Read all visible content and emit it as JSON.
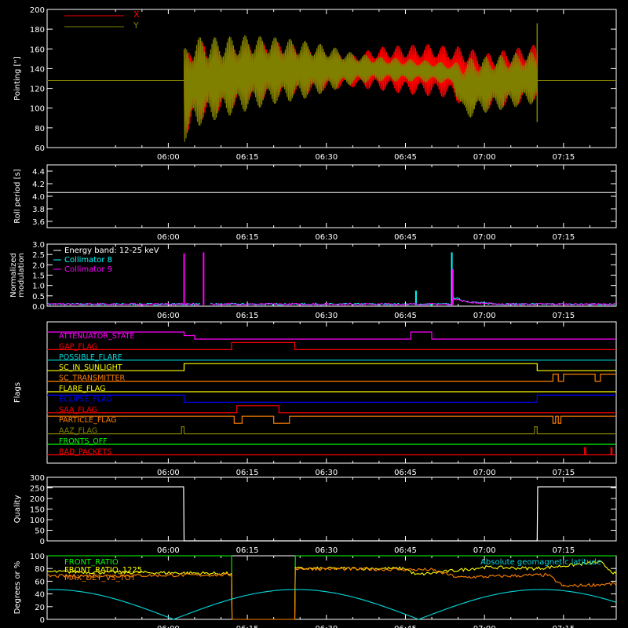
{
  "time_axis": {
    "ticks": [
      "06:00",
      "06:15",
      "06:30",
      "06:45",
      "07:00",
      "07:15"
    ],
    "range_minutes_after_0600": [
      -23,
      85
    ]
  },
  "colors": {
    "x_series": "#ff0000",
    "y_series": "#808000",
    "white": "#ffffff",
    "cyan": "#00ffff",
    "magenta": "#ff00ff",
    "red": "#ff0000",
    "orange": "#ff8000",
    "green": "#00ff00",
    "yellow": "#ffff00",
    "blue": "#0000ff",
    "olive": "#808000",
    "lightcyan": "#00d8d8"
  },
  "chart_data": [
    {
      "type": "line",
      "ylabel": "Pointing [\"]",
      "ylim": [
        60,
        200
      ],
      "yticks": [
        "60",
        "80",
        "100",
        "120",
        "140",
        "160",
        "180",
        "200"
      ],
      "legend": "top-left",
      "series": [
        {
          "name": "X",
          "color": "#ff0000",
          "baseline": 128,
          "envelope_t": [
            3,
            5,
            10,
            15,
            20,
            25,
            30,
            35,
            40,
            45,
            50,
            54,
            56,
            60,
            65,
            70
          ],
          "envelope_hi": [
            150,
            170,
            160,
            166,
            168,
            163,
            158,
            154,
            162,
            164,
            165,
            162,
            163,
            155,
            160,
            165
          ],
          "envelope_lo": [
            70,
            85,
            96,
            105,
            110,
            113,
            118,
            121,
            118,
            114,
            112,
            110,
            100,
            98,
            102,
            108
          ]
        },
        {
          "name": "Y",
          "color": "#808000",
          "baseline": 128,
          "envelope_t": [
            3,
            5,
            10,
            15,
            20,
            25,
            30,
            35,
            40,
            45,
            50,
            54,
            56,
            60,
            65,
            70
          ],
          "envelope_hi": [
            160,
            172,
            172,
            174,
            172,
            169,
            164,
            156,
            152,
            150,
            148,
            145,
            150,
            152,
            155,
            158
          ],
          "envelope_lo": [
            65,
            80,
            90,
            97,
            104,
            108,
            116,
            124,
            127,
            127,
            126,
            124,
            88,
            95,
            100,
            105
          ]
        }
      ]
    },
    {
      "type": "line",
      "ylabel": "Roll period [s]",
      "ylim": [
        3.5,
        4.5
      ],
      "yticks": [
        "3.6",
        "3.8",
        "4.0",
        "4.2",
        "4.4"
      ],
      "series": [
        {
          "name": "",
          "color": "#ffffff",
          "t": [
            -23,
            85
          ],
          "y": [
            4.06,
            4.06
          ]
        }
      ]
    },
    {
      "type": "line",
      "ylabel": "Normalized modulation",
      "ylim": [
        0,
        3.0
      ],
      "yticks": [
        "0.0",
        "0.5",
        "1.0",
        "1.5",
        "2.0",
        "2.5",
        "3.0"
      ],
      "annotation": "Energy band: 12-25 keV",
      "legend": "top-left",
      "series": [
        {
          "name": "Collimator 8",
          "color": "#00ffff",
          "segments": [
            [
              -23,
              6
            ],
            [
              8,
              40
            ]
          ],
          "spikes": [
            [
              47,
              0.75
            ],
            [
              53.8,
              2.6
            ]
          ],
          "bump": [
            54,
            63,
            0.35
          ]
        },
        {
          "name": "Collimator 9",
          "color": "#ff00ff",
          "segments": [
            [
              -23,
              6
            ],
            [
              8,
              40
            ]
          ],
          "spikes": [
            [
              3,
              2.55
            ],
            [
              6.7,
              2.6
            ],
            [
              54,
              1.8
            ]
          ],
          "bump": [
            54,
            63,
            0.3
          ]
        }
      ]
    },
    {
      "type": "line",
      "ylabel": "Flags",
      "series": [
        {
          "name": "ATTENUATOR_STATE",
          "color": "#ff00ff",
          "steps": [
            [
              -23,
              1
            ],
            [
              3,
              0.5
            ],
            [
              5,
              0
            ],
            [
              46,
              1
            ],
            [
              50,
              0
            ],
            [
              85,
              0
            ]
          ]
        },
        {
          "name": "GAP_FLAG",
          "color": "#ff0000",
          "steps": [
            [
              -23,
              0
            ],
            [
              12,
              1
            ],
            [
              24,
              0
            ],
            [
              85,
              0
            ]
          ]
        },
        {
          "name": "POSSIBLE_FLARE",
          "color": "#00d8d8",
          "steps": [
            [
              -23,
              0
            ],
            [
              85,
              0
            ]
          ]
        },
        {
          "name": "SC_IN_SUNLIGHT",
          "color": "#ffff00",
          "steps": [
            [
              -23,
              0
            ],
            [
              3,
              1
            ],
            [
              70,
              0
            ],
            [
              85,
              0
            ]
          ]
        },
        {
          "name": "SC_TRANSMITTER",
          "color": "#ff8000",
          "steps": [
            [
              -23,
              0
            ],
            [
              73,
              1
            ],
            [
              74,
              0
            ],
            [
              75,
              1
            ],
            [
              81,
              0
            ],
            [
              82,
              1
            ],
            [
              85,
              1
            ]
          ]
        },
        {
          "name": "FLARE_FLAG",
          "color": "#ffff00",
          "steps": [
            [
              -23,
              0
            ],
            [
              85,
              0
            ]
          ]
        },
        {
          "name": "ECLIPSE_FLAG",
          "color": "#0000ff",
          "steps": [
            [
              -23,
              1
            ],
            [
              3,
              0
            ],
            [
              70,
              1
            ],
            [
              85,
              1
            ]
          ]
        },
        {
          "name": "SAA_FLAG",
          "color": "#ff0000",
          "steps": [
            [
              -23,
              0
            ],
            [
              13,
              1
            ],
            [
              21,
              0
            ],
            [
              85,
              0
            ]
          ]
        },
        {
          "name": "PARTICLE_FLAG",
          "color": "#ff8000",
          "steps": [
            [
              -23,
              1
            ],
            [
              12.5,
              0
            ],
            [
              14,
              1
            ],
            [
              20,
              0
            ],
            [
              23,
              1
            ],
            [
              73,
              0
            ],
            [
              73.5,
              1
            ],
            [
              74,
              0
            ],
            [
              74.5,
              1
            ],
            [
              85,
              1
            ]
          ]
        },
        {
          "name": "AAZ_FLAG",
          "color": "#808000",
          "steps": [
            [
              -23,
              0
            ],
            [
              2.5,
              1
            ],
            [
              3,
              0
            ],
            [
              69.5,
              1
            ],
            [
              70,
              0
            ],
            [
              85,
              0
            ]
          ]
        },
        {
          "name": "FRONTS_OFF",
          "color": "#00ff00",
          "steps": [
            [
              -23,
              0
            ],
            [
              85,
              0
            ]
          ]
        },
        {
          "name": "BAD_PACKETS",
          "color": "#ff0000",
          "steps": [
            [
              -23,
              0
            ],
            [
              79,
              0
            ],
            [
              79,
              1
            ],
            [
              79.2,
              0
            ],
            [
              84,
              1
            ],
            [
              84.2,
              0
            ],
            [
              85,
              0
            ]
          ]
        }
      ]
    },
    {
      "type": "line",
      "ylabel": "Quality",
      "ylim": [
        0,
        300
      ],
      "yticks": [
        "0",
        "50",
        "100",
        "150",
        "200",
        "250",
        "300"
      ],
      "series": [
        {
          "name": "",
          "color": "#ffffff",
          "t": [
            -23,
            2.9,
            3,
            70,
            70.1,
            85
          ],
          "y": [
            255,
            255,
            0,
            0,
            255,
            255
          ]
        }
      ]
    },
    {
      "type": "line",
      "ylabel": "Degrees or %",
      "ylim": [
        0,
        100
      ],
      "yticks": [
        "0",
        "20",
        "40",
        "60",
        "80",
        "100"
      ],
      "legend": "top-left",
      "series": [
        {
          "name": "FRONT_RATIO",
          "color": "#00ff00",
          "t": [
            -23,
            12,
            12.1,
            24,
            24.1,
            85
          ],
          "y": [
            100,
            100,
            0,
            0,
            100,
            100
          ]
        },
        {
          "name": "FRONT_RATIO_1225",
          "color": "#ffff00",
          "t": [
            -23,
            3,
            12,
            12.1,
            24,
            24.1,
            45,
            47,
            60,
            70,
            82,
            85
          ],
          "y": [
            75,
            73,
            72,
            0,
            0,
            80,
            80,
            70,
            82,
            80,
            90,
            70
          ]
        },
        {
          "name": "MAX_DET_VS_TOT",
          "color": "#ff8000",
          "t": [
            -23,
            12,
            12.1,
            24,
            24.1,
            50,
            55,
            72,
            75,
            85
          ],
          "y": [
            68,
            70,
            0,
            0,
            80,
            78,
            66,
            70,
            52,
            56
          ]
        },
        {
          "name": "Absolute geomagnetic latitude",
          "color": "#00d8d8",
          "fn": "lat"
        }
      ]
    }
  ]
}
